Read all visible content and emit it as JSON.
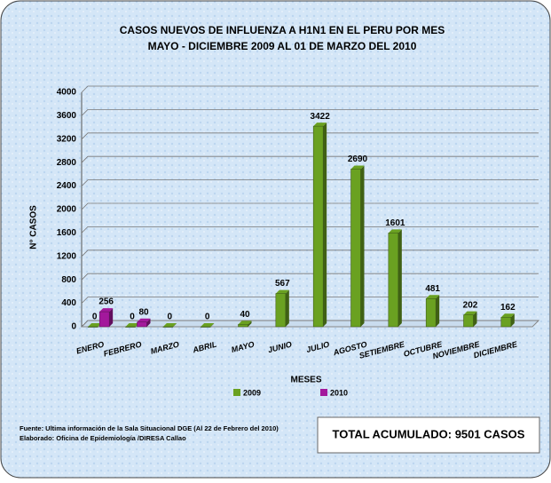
{
  "chart_data": {
    "type": "bar",
    "title": "CASOS NUEVOS DE INFLUENZA A H1N1 EN EL PERU POR MES",
    "subtitle": "MAYO -  DICIEMBRE 2009  AL 01  DE MARZO DEL 2010",
    "x_label": "MESES",
    "y_label": "N° CASOS",
    "categories": [
      "ENERO",
      "FEBRERO",
      "MARZO",
      "ABRIL",
      "MAYO",
      "JUNIO",
      "JULIO",
      "AGOSTO",
      "SETIEMBRE",
      "OCTUBRE",
      "NOVIEMBRE",
      "DICIEMBRE"
    ],
    "series": [
      {
        "name": "2009",
        "color": "#6aa121",
        "values": [
          0,
          0,
          0,
          0,
          40,
          567,
          3422,
          2690,
          1601,
          481,
          202,
          162
        ]
      },
      {
        "name": "2010",
        "color": "#a3189c",
        "values": [
          256,
          80,
          null,
          null,
          null,
          null,
          null,
          null,
          null,
          null,
          null,
          null
        ]
      }
    ],
    "ylim": [
      0,
      4000
    ],
    "yticks": [
      0,
      400,
      800,
      1200,
      1600,
      2000,
      2400,
      2800,
      3200,
      3600,
      4000
    ],
    "grid": true,
    "legend": "bottom",
    "source": [
      "Fuente: Ultima información de la Sala Situacional DGE (Al 22 de Febrero del 2010)",
      "Elaborado: Oficina de Epidemiología /DIRESA Callao"
    ],
    "total": "TOTAL ACUMULADO: 9501 CASOS"
  }
}
